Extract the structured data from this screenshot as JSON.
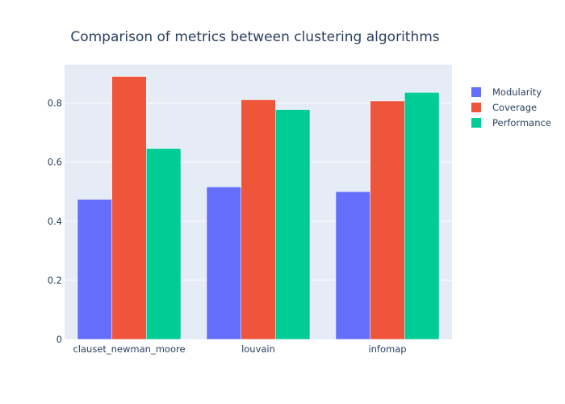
{
  "chart_data": {
    "type": "bar",
    "title": "Comparison of metrics between clustering algorithms",
    "xlabel": "",
    "ylabel": "",
    "categories": [
      "clauset_newman_moore",
      "louvain",
      "infomap"
    ],
    "series": [
      {
        "name": "Modularity",
        "values": [
          0.474,
          0.516,
          0.5
        ],
        "color": "#636efa"
      },
      {
        "name": "Coverage",
        "values": [
          0.89,
          0.811,
          0.807
        ],
        "color": "#ef553b"
      },
      {
        "name": "Performance",
        "values": [
          0.646,
          0.778,
          0.836
        ],
        "color": "#00cc96"
      }
    ],
    "ylim": [
      0,
      0.93
    ],
    "yticks": [
      0,
      0.2,
      0.4,
      0.6,
      0.8
    ],
    "ytick_labels": [
      "0",
      "0.2",
      "0.4",
      "0.6",
      "0.8"
    ],
    "grid": true,
    "legend_position": "top-right",
    "plot_background": "#e5ecf6"
  }
}
